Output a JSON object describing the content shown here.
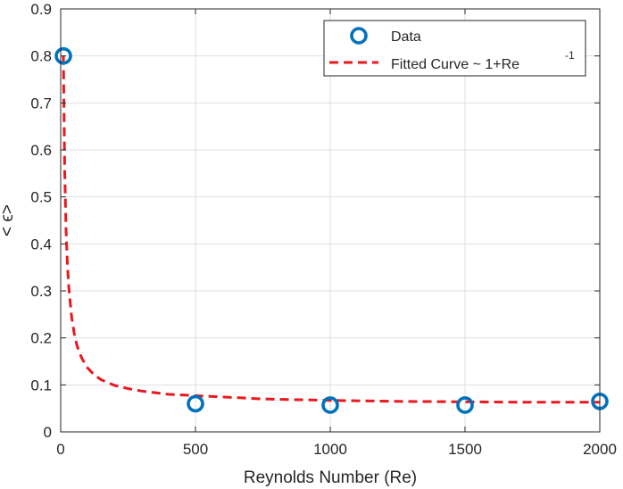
{
  "chart_data": {
    "type": "scatter",
    "xlabel": "Reynolds Number (Re)",
    "ylabel": "< ϵ>",
    "xlim": [
      0,
      2000
    ],
    "ylim": [
      0,
      0.9
    ],
    "xticks": [
      0,
      500,
      1000,
      1500,
      2000
    ],
    "yticks": [
      0,
      0.1,
      0.2,
      0.3,
      0.4,
      0.5,
      0.6,
      0.7,
      0.8,
      0.9
    ],
    "xtick_labels": [
      "0",
      "500",
      "1000",
      "1500",
      "2000"
    ],
    "ytick_labels": [
      "0",
      "0.1",
      "0.2",
      "0.3",
      "0.4",
      "0.5",
      "0.6",
      "0.7",
      "0.8",
      "0.9"
    ],
    "grid": true,
    "legend_position": "top-right",
    "series": [
      {
        "name": "Data",
        "style": "markers",
        "color": "#0072BD",
        "x": [
          10,
          500,
          1000,
          1500,
          2000
        ],
        "y": [
          0.8,
          0.06,
          0.057,
          0.057,
          0.065
        ]
      },
      {
        "name": "Fitted Curve ~ 1+Re",
        "name_superscript": "-1",
        "style": "dashed-line",
        "color": "#E8191E",
        "x": [
          10,
          15,
          20,
          25,
          30,
          40,
          50,
          60,
          70,
          80,
          100,
          125,
          150,
          200,
          250,
          300,
          400,
          500,
          750,
          1000,
          1250,
          1500,
          1750,
          2000
        ],
        "y": [
          0.8,
          0.554,
          0.431,
          0.357,
          0.308,
          0.247,
          0.21,
          0.185,
          0.168,
          0.155,
          0.136,
          0.121,
          0.111,
          0.099,
          0.092,
          0.087,
          0.08,
          0.077,
          0.07,
          0.067,
          0.065,
          0.064,
          0.063,
          0.063
        ]
      }
    ]
  }
}
